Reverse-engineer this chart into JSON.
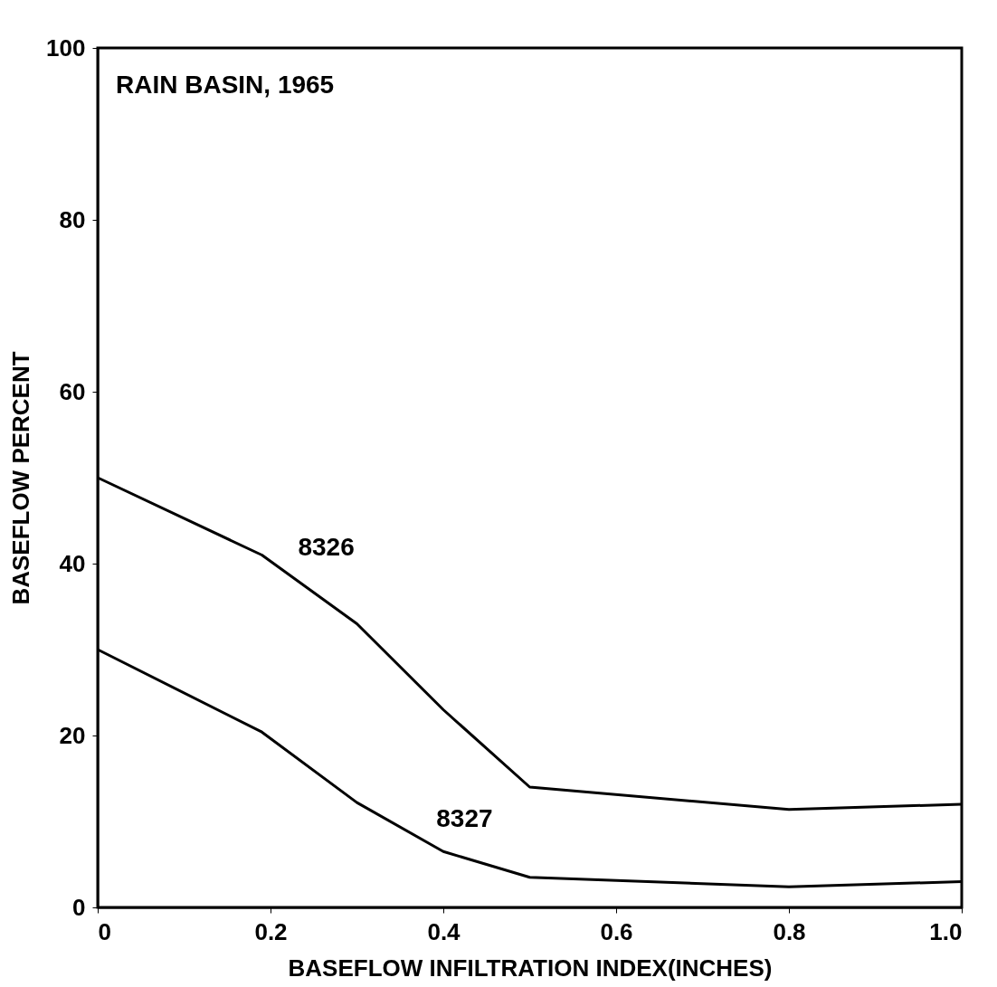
{
  "chart_data": {
    "type": "line",
    "title": "RAIN BASIN, 1965",
    "xlabel": "BASEFLOW  INFILTRATION INDEX(INCHES)",
    "ylabel": "BASEFLOW PERCENT",
    "x": [
      0,
      0.19,
      0.3,
      0.4,
      0.5,
      0.8,
      1.0
    ],
    "series": [
      {
        "color": "#000000",
        "values": [
          50,
          41,
          33,
          23,
          14,
          11.4,
          12
        ]
      },
      {
        "color": "#000000",
        "values": [
          30,
          20.4,
          12.2,
          6.5,
          3.5,
          2.4,
          3
        ]
      }
    ],
    "annotations": [
      {
        "text": "8326",
        "x": 0.19,
        "y": 41
      },
      {
        "text": "8327",
        "x": 0.35,
        "y": 9.35
      }
    ],
    "xlim": [
      0,
      1.0
    ],
    "xticks": [
      0,
      0.2,
      0.4,
      0.6,
      0.8,
      {
        "value": 1.0,
        "label": "1.0"
      }
    ],
    "ylim": [
      0,
      100
    ],
    "yticks": [
      0,
      20,
      40,
      60,
      80,
      100
    ],
    "grid": false,
    "marker": "none",
    "line_style": "solid"
  }
}
